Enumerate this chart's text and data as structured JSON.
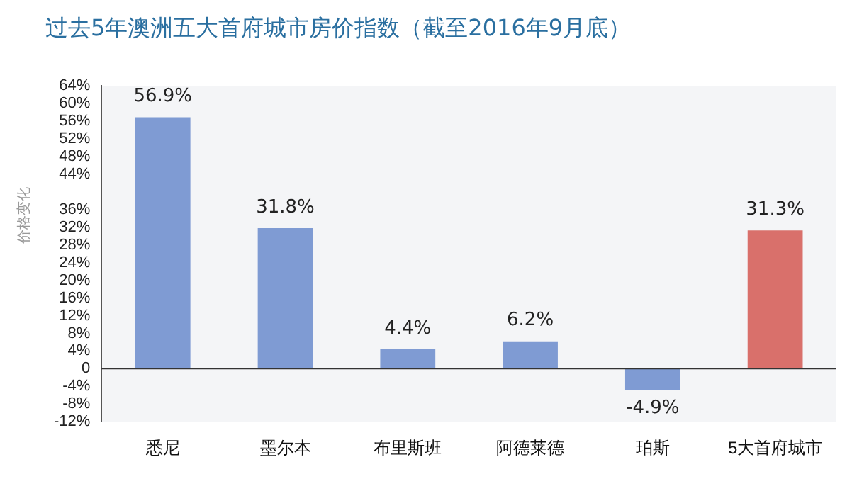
{
  "chart_data": {
    "type": "bar",
    "title": "过去5年澳洲五大首府城市房价指数（截至2016年9月底）",
    "ylabel": "价格变化",
    "categories": [
      "悉尼",
      "墨尔本",
      "布里斯班",
      "阿德莱德",
      "珀斯",
      "5大首府城市"
    ],
    "values": [
      56.9,
      31.8,
      4.4,
      6.2,
      -4.9,
      31.3
    ],
    "colors": [
      "#7f9bd3",
      "#7f9bd3",
      "#7f9bd3",
      "#7f9bd3",
      "#7f9bd3",
      "#d9706b"
    ],
    "value_labels": [
      "56.9%",
      "31.8%",
      "4.4%",
      "6.2%",
      "-4.9%",
      "31.3%"
    ],
    "ylim": [
      -12,
      64
    ],
    "yticks": [
      {
        "value": -12,
        "label": "-12%"
      },
      {
        "value": -8,
        "label": "-8%"
      },
      {
        "value": -4,
        "label": "-4%"
      },
      0,
      {
        "value": 4,
        "label": "4%"
      },
      {
        "value": 8,
        "label": "8%"
      },
      {
        "value": 12,
        "label": "12%"
      },
      {
        "value": 16,
        "label": "16%"
      },
      {
        "value": 20,
        "label": "20%"
      },
      {
        "value": 24,
        "label": "24%"
      },
      {
        "value": 28,
        "label": "28%"
      },
      {
        "value": 32,
        "label": "32%"
      },
      {
        "value": 36,
        "label": "36%"
      },
      {
        "value": 44,
        "label": "44%"
      },
      {
        "value": 48,
        "label": "48%"
      },
      {
        "value": 52,
        "label": "52%"
      },
      {
        "value": 56,
        "label": "56%"
      },
      {
        "value": 60,
        "label": "60%"
      },
      {
        "value": 64,
        "label": "64%"
      }
    ],
    "legend": false
  }
}
